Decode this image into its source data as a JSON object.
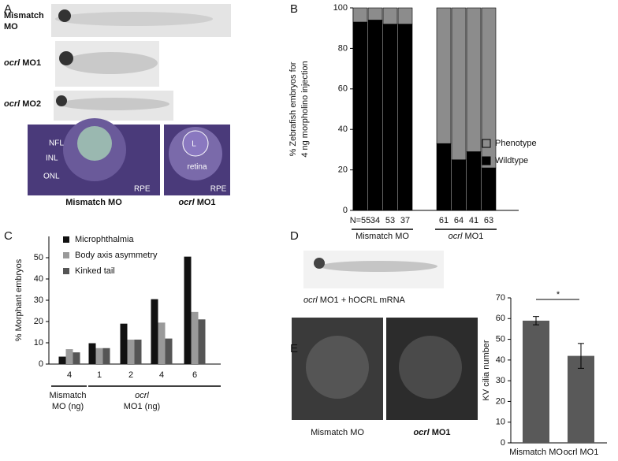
{
  "panels": [
    "A",
    "B",
    "C",
    "D",
    "E"
  ],
  "panel_a": {
    "rows": [
      {
        "lines": [
          "Mismatch",
          "MO"
        ]
      },
      {
        "italic": "ocrl",
        "text": "MO1"
      },
      {
        "italic": "ocrl",
        "text": "MO2"
      }
    ],
    "histology_labels": [
      "NFL",
      "INL",
      "ONL",
      "RPE",
      "L",
      "retina",
      "RPE"
    ],
    "captions": [
      {
        "text": "Mismatch MO"
      },
      {
        "italic": "ocrl",
        "text": "MO1"
      }
    ]
  },
  "panel_d": {
    "italic": "ocrl",
    "text": "MO1",
    "extra": "+ hOCRL mRNA"
  },
  "panel_e": {
    "captions": [
      {
        "text": "Mismatch MO"
      },
      {
        "italic": "ocrl",
        "text": "MO1"
      }
    ]
  },
  "chart_data": [
    {
      "type": "stacked_bar",
      "ylabel_lines": [
        "% Zebrafish embryos for",
        "4 ng morpholino injection"
      ],
      "categories": [
        "N=55",
        "34",
        "53",
        "37",
        "61",
        "64",
        "41",
        "63"
      ],
      "series": [
        {
          "name": "Phenotype",
          "color": "#8c8c8c",
          "values": [
            7,
            6,
            8,
            8,
            67,
            75,
            71,
            79
          ]
        },
        {
          "name": "Wildtype",
          "color": "#000000",
          "values": [
            93,
            94,
            92,
            92,
            33,
            25,
            29,
            21
          ]
        }
      ],
      "groups": [
        {
          "text": "Mismatch MO"
        },
        {
          "italic": "ocrl",
          "text": "MO1"
        }
      ],
      "ylim": [
        0,
        100
      ],
      "yticks": [
        0,
        20,
        40,
        60,
        80,
        100
      ]
    },
    {
      "type": "grouped_bar",
      "ylabel": "% Morphant embryos",
      "categories": [
        "4",
        "1",
        "2",
        "4",
        "6"
      ],
      "series": [
        {
          "name": "Microphthalmia",
          "color": "#111111",
          "values": [
            3.5,
            9.8,
            19,
            30.5,
            50.5
          ]
        },
        {
          "name": "Body axis asymmetry",
          "color": "#9a9a9a",
          "values": [
            7,
            7.5,
            11.5,
            19.5,
            24.5
          ]
        },
        {
          "name": "Kinked tail",
          "color": "#555555",
          "values": [
            5.5,
            7.5,
            11.5,
            12,
            21
          ]
        }
      ],
      "groups": [
        {
          "lines": [
            "Mismatch",
            "MO (ng)"
          ]
        },
        {
          "lines": [
            "ocrl",
            "MO1 (ng)"
          ]
        }
      ],
      "ylim": [
        0,
        60
      ],
      "yticks": [
        0,
        10,
        20,
        30,
        40,
        50
      ]
    },
    {
      "type": "bar",
      "ylabel": "KV cilia number",
      "categories": [
        "Mismatch MO",
        "ocrl MO1"
      ],
      "values": [
        59,
        42
      ],
      "errors": [
        2,
        6
      ],
      "color": "#595959",
      "annotation": "*",
      "ylim": [
        0,
        70
      ],
      "yticks": [
        0,
        10,
        20,
        30,
        40,
        50,
        60,
        70
      ]
    }
  ]
}
